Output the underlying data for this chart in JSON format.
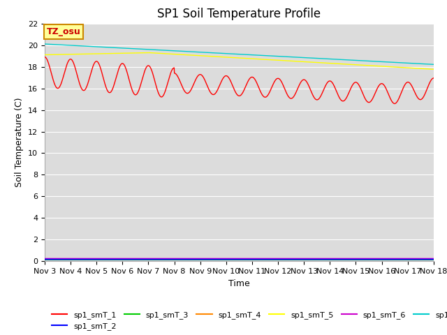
{
  "title": "SP1 Soil Temperature Profile",
  "xlabel": "Time",
  "ylabel": "Soil Temperature (C)",
  "tz_label": "TZ_osu",
  "ylim": [
    0,
    22
  ],
  "yticks": [
    0,
    2,
    4,
    6,
    8,
    10,
    12,
    14,
    16,
    18,
    20,
    22
  ],
  "xtick_labels": [
    "Nov 3",
    "Nov 4",
    "Nov 5",
    "Nov 6",
    "Nov 7",
    "Nov 8",
    "Nov 9",
    "Nov 10",
    "Nov 11",
    "Nov 12",
    "Nov 13",
    "Nov 14",
    "Nov 15",
    "Nov 16",
    "Nov 17",
    "Nov 18"
  ],
  "series_colors": {
    "sp1_smT_1": "#FF0000",
    "sp1_smT_2": "#0000FF",
    "sp1_smT_3": "#00CC00",
    "sp1_smT_4": "#FF8800",
    "sp1_smT_5": "#FFFF00",
    "sp1_smT_6": "#CC00CC",
    "sp1_smT_7": "#00CCCC"
  },
  "background_color": "#DCDCDC",
  "title_fontsize": 12,
  "axis_label_fontsize": 9,
  "tick_fontsize": 8,
  "legend_fontsize": 8
}
